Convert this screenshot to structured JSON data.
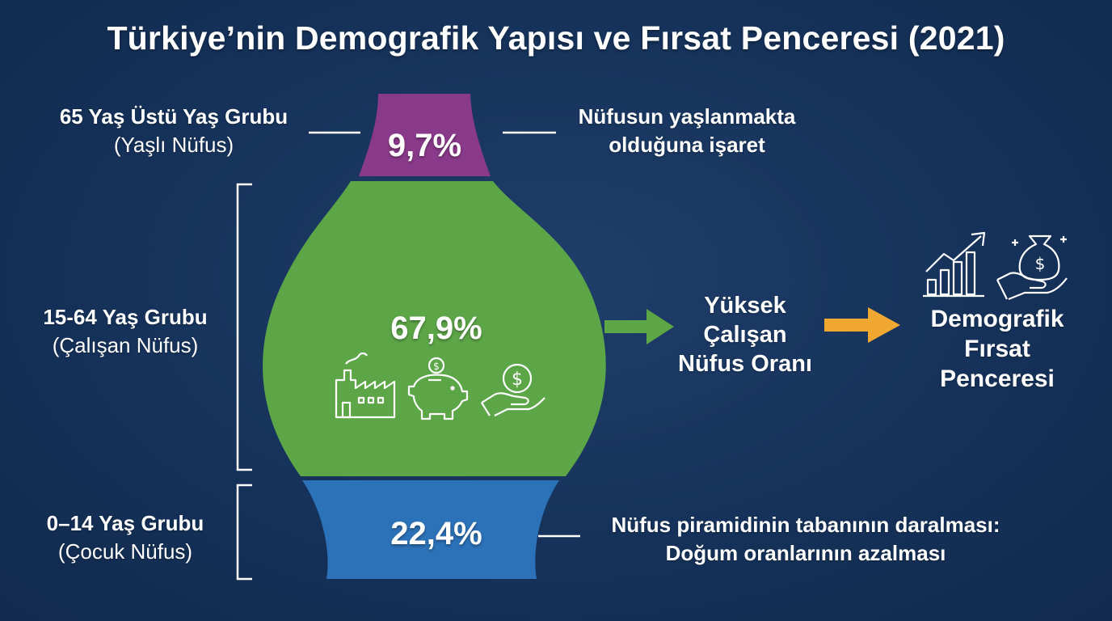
{
  "title": "Türkiye’nin Demografik Yapısı ve Fırsat Penceresi (2021)",
  "groups": {
    "elderly": {
      "label": "65 Yaş Üstü Yaş Grubu",
      "sublabel": "(Yaşlı Nüfus)",
      "value": "9,7%",
      "note_line1": "Nüfusun yaşlanmakta",
      "note_line2": "olduğuna işaret",
      "color": "#8a3a8a"
    },
    "working": {
      "label": "15-64 Yaş Grubu",
      "sublabel": "(Çalışan Nüfus)",
      "value": "67,9%",
      "color": "#5da648"
    },
    "children": {
      "label": "0–14 Yaş Grubu",
      "sublabel": "(Çocuk Nüfus)",
      "value": "22,4%",
      "note_line1": "Nüfus piramidinin tabanının daralması:",
      "note_line2": "Doğum oranlarının azalması",
      "color": "#2c72b8"
    }
  },
  "flow": {
    "step1_line1": "Yüksek",
    "step1_line2": "Çalışan",
    "step1_line3": "Nüfus Oranı",
    "step2_line1": "Demografik",
    "step2_line2": "Fırsat",
    "step2_line3": "Penceresi",
    "arrow1_color": "#5da648",
    "arrow2_color": "#f0a830"
  },
  "icons": [
    "factory-icon",
    "piggy-bank-icon",
    "hand-coin-icon",
    "growth-chart-icon",
    "money-bag-hand-icon"
  ]
}
